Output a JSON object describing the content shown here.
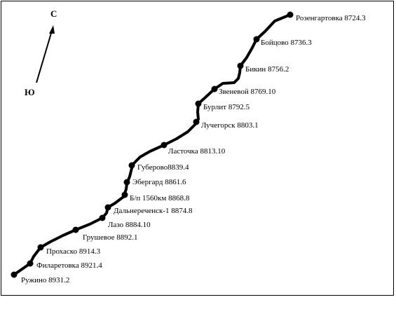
{
  "compass": {
    "north": "С",
    "south": "Ю"
  },
  "stations": [
    {
      "id": "rozengartovka",
      "label": "Розенгартовка 8724.3"
    },
    {
      "id": "boytsovo",
      "label": "Бойцово 8736.3"
    },
    {
      "id": "bikin",
      "label": "Бикин 8756.2"
    },
    {
      "id": "zvenevoy",
      "label": "Звеневой 8769.10"
    },
    {
      "id": "burlit",
      "label": "Бурлит 8792.5"
    },
    {
      "id": "luchegorsk",
      "label": "Лучегорск 8803.1"
    },
    {
      "id": "lastochka",
      "label": "Ласточка 8813.10"
    },
    {
      "id": "guberovo",
      "label": "Губерово8839.4"
    },
    {
      "id": "ebergard",
      "label": "Эбергард 8861.6"
    },
    {
      "id": "bp1560",
      "label": "Б/п 1560км 8868.8"
    },
    {
      "id": "dalnerechensk",
      "label": "Дальнереченск-1 8874.8"
    },
    {
      "id": "lazo",
      "label": "Лазо 8884.10"
    },
    {
      "id": "grushevoe",
      "label": "Грушевое 8892.1"
    },
    {
      "id": "prokhasko",
      "label": "Прохаско 8914.3"
    },
    {
      "id": "filaretovka",
      "label": "Филаретовка 8921.4"
    },
    {
      "id": "ruzhino",
      "label": "Ружино 8931.2"
    }
  ]
}
